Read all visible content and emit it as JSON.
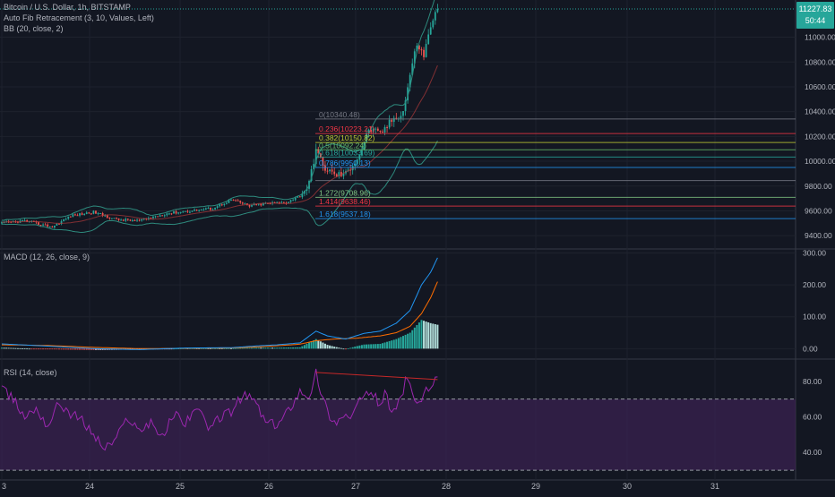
{
  "header": {
    "symbol_line": "Bitcoin / U.S. Dollar, 1h, BITSTAMP",
    "fib_indicator": "Auto Fib Retracement (3, 10, Values, Left)",
    "bb_indicator": "BB (20, close, 2)",
    "macd_indicator": "MACD (12, 26, close, 9)",
    "rsi_indicator": "RSI (14, close)"
  },
  "price_badge": {
    "price": "11227.83",
    "countdown": "50:44",
    "color": "#26a69a"
  },
  "colors": {
    "up": "#26a69a",
    "down": "#ef5350",
    "bb": "#2e8b7e",
    "macd": "#2196f3",
    "signal": "#ff6d00",
    "rsi_line": "#9c27b0",
    "rsi_band": "#3a2150",
    "divergence": "#c62828"
  },
  "chart_data": [
    {
      "id": "price",
      "type": "candlestick",
      "title": "Bitcoin / U.S. Dollar, 1h, BITSTAMP",
      "ylim": [
        9300,
        11300
      ],
      "y_ticks": [
        "11000.00",
        "10800.00",
        "10600.00",
        "10400.00",
        "10200.00",
        "10000.00",
        "9800.00",
        "9600.00",
        "9400.00"
      ],
      "x_ticks": [
        "3",
        "24",
        "25",
        "26",
        "27",
        "28",
        "29",
        "30",
        "31"
      ],
      "anchors": [
        [
          0,
          9500
        ],
        [
          10,
          9520
        ],
        [
          22,
          9470
        ],
        [
          30,
          9560
        ],
        [
          40,
          9590
        ],
        [
          50,
          9530
        ],
        [
          60,
          9520
        ],
        [
          72,
          9580
        ],
        [
          82,
          9600
        ],
        [
          92,
          9620
        ],
        [
          100,
          9690
        ],
        [
          108,
          9640
        ],
        [
          116,
          9660
        ],
        [
          124,
          9670
        ],
        [
          130,
          9720
        ],
        [
          134,
          9820
        ],
        [
          137,
          10100
        ],
        [
          140,
          9960
        ],
        [
          145,
          9890
        ],
        [
          150,
          9900
        ],
        [
          156,
          10050
        ],
        [
          160,
          10260
        ],
        [
          165,
          10220
        ],
        [
          170,
          10330
        ],
        [
          175,
          10400
        ],
        [
          178,
          10700
        ],
        [
          181,
          10950
        ],
        [
          184,
          10850
        ],
        [
          187,
          11100
        ],
        [
          190,
          11227
        ]
      ],
      "fib_levels": [
        {
          "ratio": "0",
          "value": 10340.48,
          "label": "0(10340.48)",
          "color": "#787b86"
        },
        {
          "ratio": "0.236",
          "value": 10223.21,
          "label": "0.236(10223.21)",
          "color": "#f23645"
        },
        {
          "ratio": "0.382",
          "value": 10150.82,
          "label": "0.382(10150.82)",
          "color": "#c0ca33"
        },
        {
          "ratio": "0.5",
          "value": 10092.24,
          "label": "0.5(10092.24)",
          "color": "#66bb6a"
        },
        {
          "ratio": "0.618",
          "value": 10033.69,
          "label": "0.618(10033.69)",
          "color": "#26a69a"
        },
        {
          "ratio": "0.786",
          "value": 9950.13,
          "label": "0.786(9950.13)",
          "color": "#2196f3"
        },
        {
          "ratio": "1",
          "value": 9844.0,
          "label": "",
          "color": "#787b86"
        },
        {
          "ratio": "1.272",
          "value": 9708.96,
          "label": "1.272(9708.96)",
          "color": "#81c784"
        },
        {
          "ratio": "1.414",
          "value": 9638.46,
          "label": "1.414(9638.46)",
          "color": "#f23645"
        },
        {
          "ratio": "1.618",
          "value": 9537.18,
          "label": "1.618(9537.18)",
          "color": "#2196f3"
        }
      ]
    },
    {
      "id": "macd",
      "type": "line",
      "title": "MACD (12, 26, close, 9)",
      "ylim": [
        -30,
        310
      ],
      "y_ticks": [
        "300.00",
        "200.00",
        "100.00",
        "0.00"
      ],
      "macd": [
        [
          0,
          15
        ],
        [
          20,
          8
        ],
        [
          40,
          0
        ],
        [
          60,
          -3
        ],
        [
          80,
          2
        ],
        [
          100,
          3
        ],
        [
          110,
          8
        ],
        [
          120,
          12
        ],
        [
          130,
          18
        ],
        [
          137,
          55
        ],
        [
          142,
          40
        ],
        [
          150,
          30
        ],
        [
          158,
          48
        ],
        [
          165,
          55
        ],
        [
          172,
          80
        ],
        [
          178,
          120
        ],
        [
          183,
          200
        ],
        [
          187,
          240
        ],
        [
          190,
          285
        ]
      ],
      "signal": [
        [
          0,
          12
        ],
        [
          20,
          10
        ],
        [
          40,
          4
        ],
        [
          60,
          0
        ],
        [
          80,
          1
        ],
        [
          100,
          2
        ],
        [
          110,
          5
        ],
        [
          120,
          9
        ],
        [
          130,
          14
        ],
        [
          137,
          25
        ],
        [
          145,
          30
        ],
        [
          155,
          33
        ],
        [
          165,
          40
        ],
        [
          172,
          50
        ],
        [
          178,
          70
        ],
        [
          183,
          110
        ],
        [
          187,
          160
        ],
        [
          190,
          210
        ]
      ]
    },
    {
      "id": "rsi",
      "type": "line",
      "title": "RSI (14, close)",
      "ylim": [
        25,
        92
      ],
      "y_ticks": [
        "80.00",
        "60.00",
        "40.00"
      ],
      "band": [
        30,
        70
      ],
      "rsi": [
        [
          0,
          75
        ],
        [
          5,
          70
        ],
        [
          10,
          60
        ],
        [
          15,
          65
        ],
        [
          20,
          55
        ],
        [
          25,
          68
        ],
        [
          30,
          62
        ],
        [
          35,
          58
        ],
        [
          40,
          50
        ],
        [
          45,
          42
        ],
        [
          50,
          48
        ],
        [
          55,
          60
        ],
        [
          60,
          52
        ],
        [
          65,
          58
        ],
        [
          70,
          48
        ],
        [
          75,
          62
        ],
        [
          80,
          57
        ],
        [
          85,
          66
        ],
        [
          90,
          52
        ],
        [
          95,
          60
        ],
        [
          100,
          63
        ],
        [
          105,
          72
        ],
        [
          110,
          70
        ],
        [
          115,
          57
        ],
        [
          120,
          55
        ],
        [
          125,
          64
        ],
        [
          130,
          75
        ],
        [
          135,
          72
        ],
        [
          137,
          85
        ],
        [
          140,
          70
        ],
        [
          143,
          61
        ],
        [
          146,
          56
        ],
        [
          149,
          62
        ],
        [
          152,
          58
        ],
        [
          155,
          68
        ],
        [
          158,
          70
        ],
        [
          161,
          75
        ],
        [
          164,
          68
        ],
        [
          167,
          72
        ],
        [
          170,
          65
        ],
        [
          173,
          67
        ],
        [
          176,
          80
        ],
        [
          179,
          74
        ],
        [
          182,
          66
        ],
        [
          185,
          75
        ],
        [
          188,
          78
        ],
        [
          190,
          81
        ]
      ],
      "divergence": [
        [
          137,
          85
        ],
        [
          190,
          81
        ]
      ]
    }
  ]
}
